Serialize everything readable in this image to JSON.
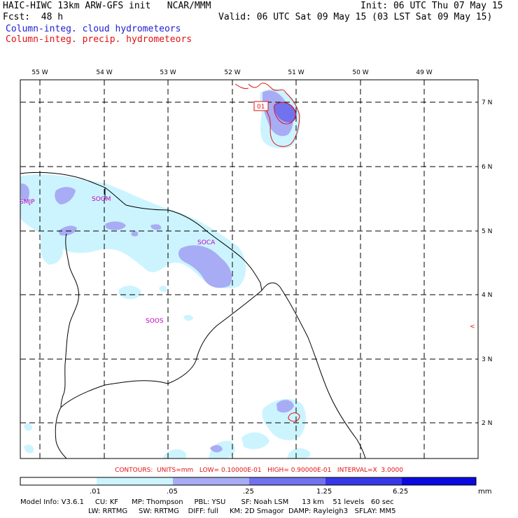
{
  "header": {
    "title_line": "HAIC-HIWC 13km ARW-GFS init   NCAR/MMM",
    "init_line": "Init: 06 UTC Thu 07 May 15",
    "fcst_line": "Fcst:  48 h",
    "valid_line": "Valid: 06 UTC Sat 09 May 15 (03 LST Sat 09 May 15)",
    "field1": "Column-integ. cloud hydrometeors",
    "field2": "Column-integ. precip. hydrometeors"
  },
  "colors": {
    "field1": "#2020d0",
    "field2": "#e01010",
    "station": "#c000c0"
  },
  "lon_labels": [
    "55 W",
    "54 W",
    "53 W",
    "52 W",
    "51 W",
    "50 W",
    "49 W"
  ],
  "lat_labels": [
    "7 N",
    "6 N",
    "5 N",
    "4 N",
    "3 N",
    "2 N"
  ],
  "stations": [
    "SMJP",
    "SOGM",
    "SOCA",
    "SOOS"
  ],
  "contour_text": {
    "contour_label": "01",
    "line": "CONTOURS:  UNITS=mm   LOW= 0.10000E-01   HIGH= 0.90000E-01   INTERVAL=X  3.0000",
    "edge_mark": "<"
  },
  "colorbar": {
    "colors": [
      "#ffffff",
      "#ccf4ff",
      "#a8acf4",
      "#7272ee",
      "#3838e8",
      "#0a0ae0"
    ],
    "labels": [
      ".01",
      ".05",
      ".25",
      "1.25",
      "6.25"
    ],
    "units": "mm"
  },
  "footer": {
    "line1": "Model Info: V3.6.1     CU: KF      MP: Thompson     PBL: YSU       SF: Noah LSM      13 km    51 levels   60 sec",
    "line2": "LW: RRTMG     SW: RRTMG    DIFF: full     KM: 2D Smagor  DAMP: Rayleigh3   SFLAY: MM5"
  }
}
